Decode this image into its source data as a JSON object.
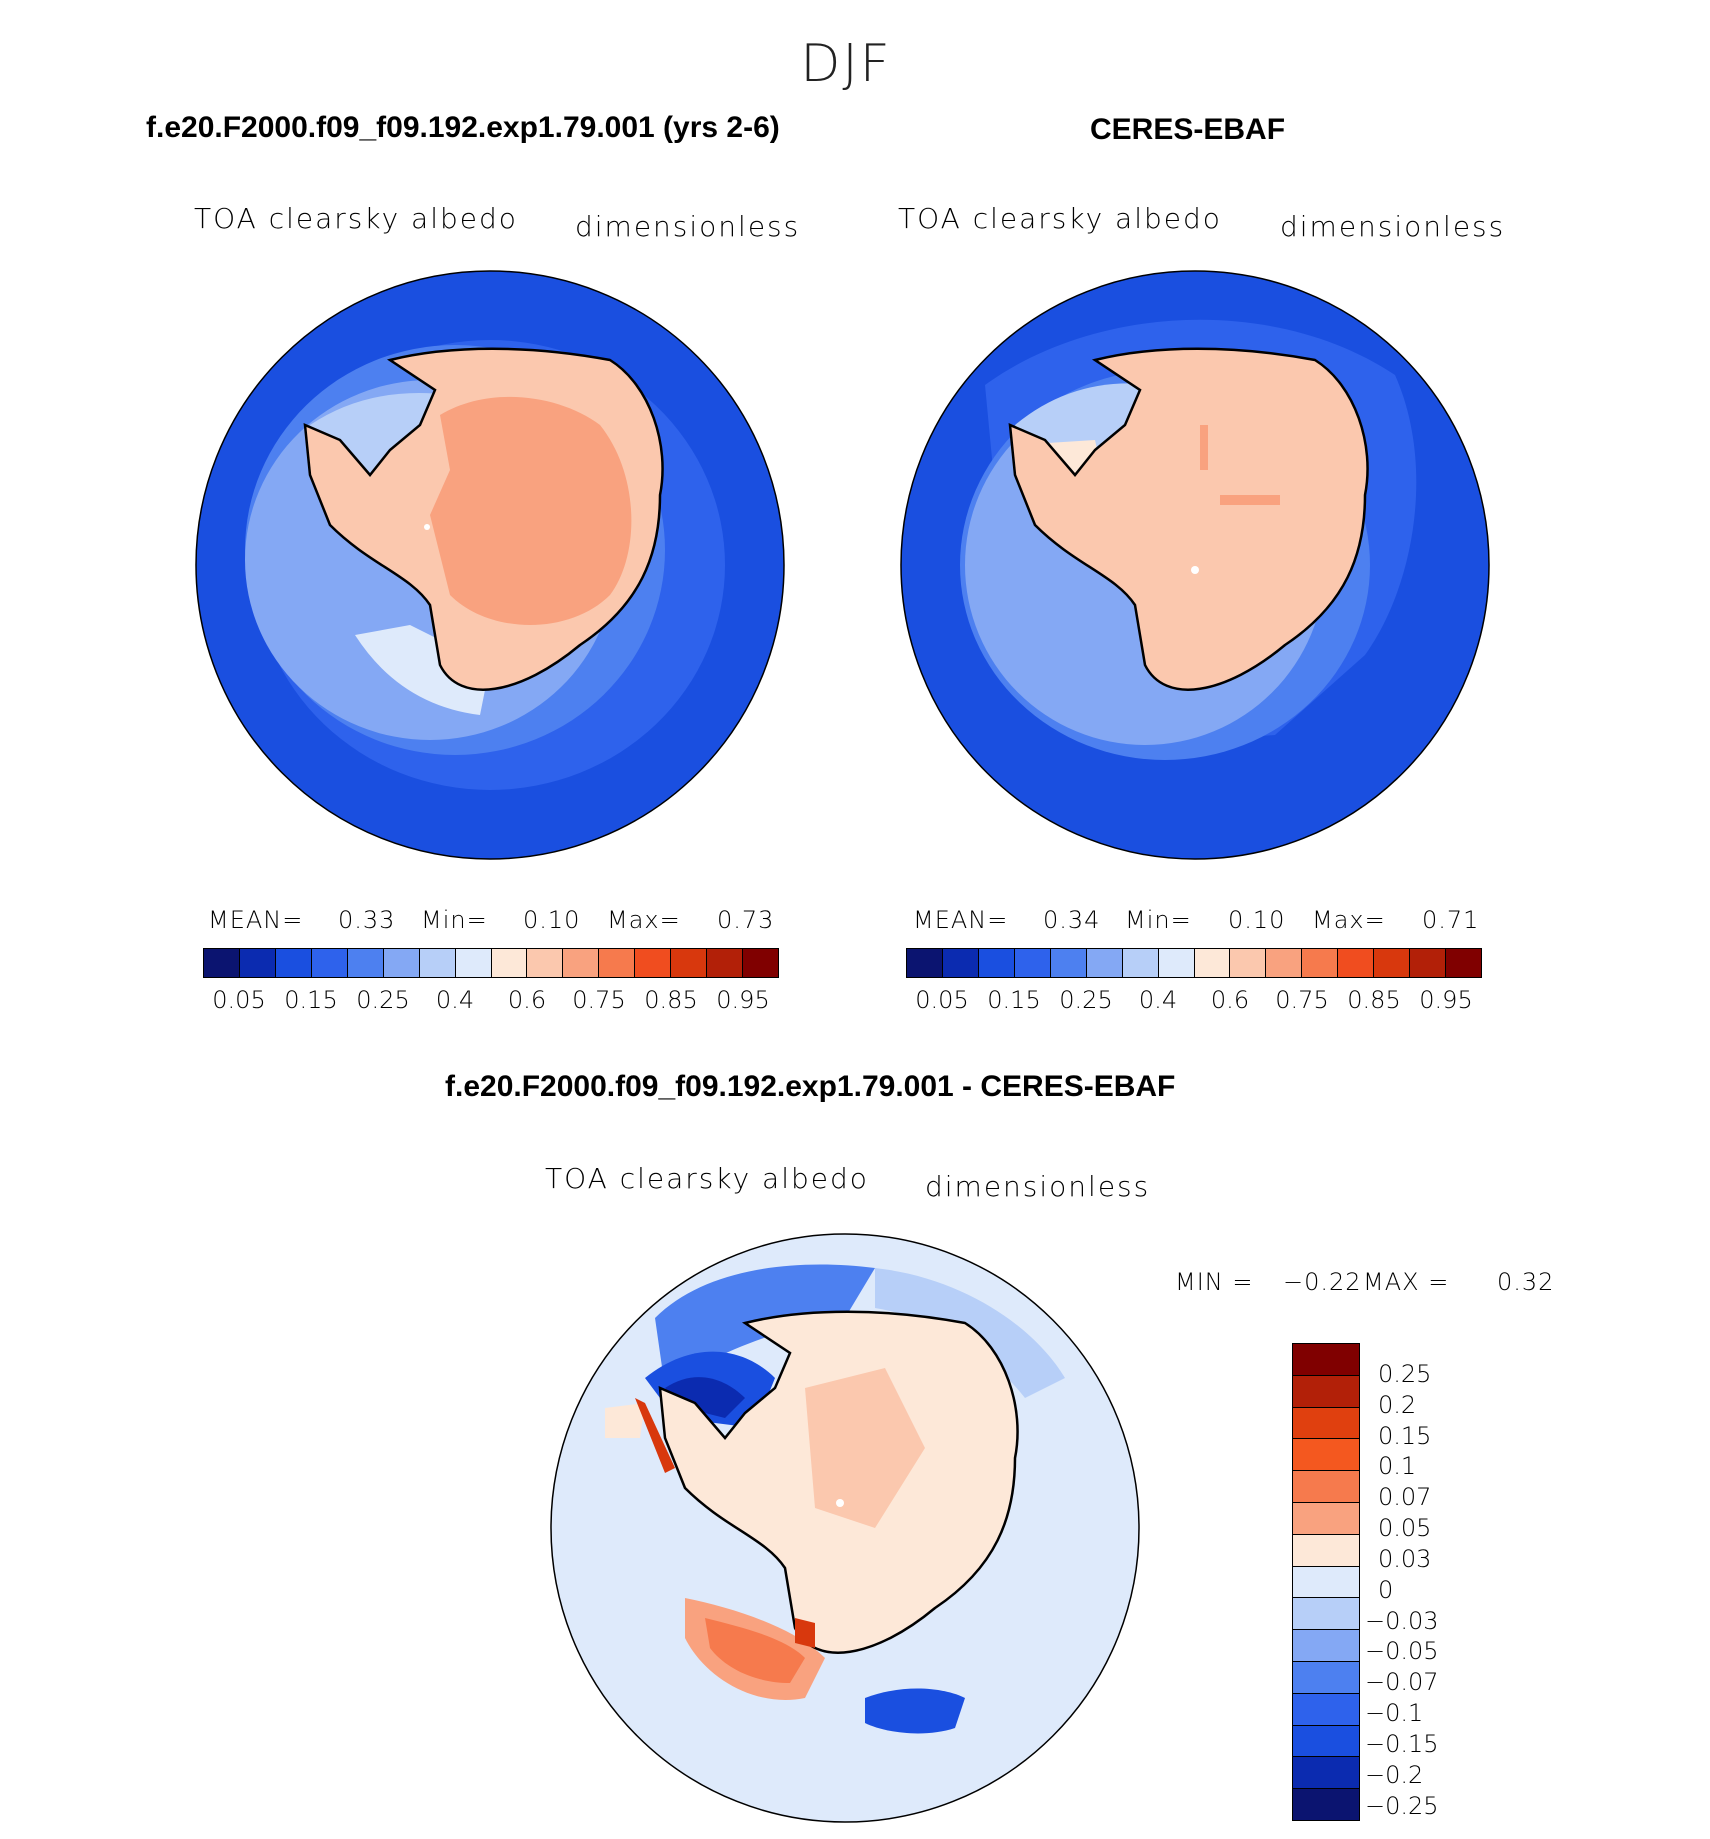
{
  "season": "DJF",
  "panels": [
    {
      "title": "f.e20.F2000.f09_f09.192.exp1.79.001 (yrs 2-6)",
      "variable": "TOA clearsky albedo",
      "units": "dimensionless",
      "mean_label": "MEAN=",
      "mean": "0.33",
      "min_label": "Min=",
      "min": "0.10",
      "max_label": "Max=",
      "max": "0.73"
    },
    {
      "title": "CERES-EBAF",
      "variable": "TOA clearsky albedo",
      "units": "dimensionless",
      "mean_label": "MEAN=",
      "mean": "0.34",
      "min_label": "Min=",
      "min": "0.10",
      "max_label": "Max=",
      "max": "0.71"
    },
    {
      "title": "f.e20.F2000.f09_f09.192.exp1.79.001 - CERES-EBAF",
      "variable": "TOA clearsky albedo",
      "units": "dimensionless",
      "min_label": "MIN =",
      "min": "−0.22",
      "max_label": "MAX =",
      "max": "0.32"
    }
  ],
  "abs_colorbar": {
    "colors": [
      "#0b1470",
      "#0b2bb0",
      "#1a4fe0",
      "#2e62ec",
      "#4d80f0",
      "#84a8f4",
      "#b7cff8",
      "#deeafb",
      "#fde8d8",
      "#fbc8ae",
      "#f9a27f",
      "#f67a4d",
      "#f04d1f",
      "#d8380d",
      "#b22008",
      "#800000"
    ],
    "ticks": [
      "0.05",
      "0.15",
      "0.25",
      "0.4",
      "0.6",
      "0.75",
      "0.85",
      "0.95"
    ]
  },
  "diff_colorbar": {
    "colors": [
      "#800000",
      "#b22008",
      "#e0400f",
      "#f4581f",
      "#f67a4d",
      "#f9a27f",
      "#fde8d8",
      "#deeafb",
      "#b7cff8",
      "#84a8f4",
      "#4d80f0",
      "#2e62ec",
      "#1a4fe0",
      "#0b2bb0",
      "#0b1470"
    ],
    "ticks": [
      "0.25",
      "0.2",
      "0.15",
      "0.1",
      "0.07",
      "0.05",
      "0.03",
      "0",
      "−0.03",
      "−0.05",
      "−0.07",
      "−0.1",
      "−0.15",
      "−0.2",
      "−0.25"
    ]
  }
}
